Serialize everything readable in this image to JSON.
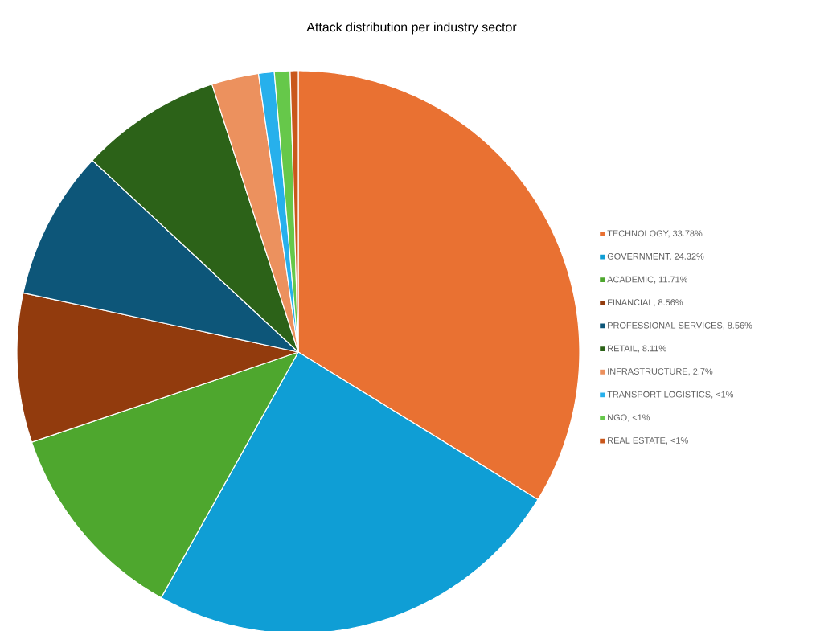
{
  "chart_data": {
    "type": "pie",
    "title": "Attack distribution per industry sector",
    "categories": [
      "TECHNOLOGY, 33.78%",
      "GOVERNMENT, 24.32%",
      "ACADEMIC, 11.71%",
      "FINANCIAL, 8.56%",
      "PROFESSIONAL SERVICES, 8.56%",
      "RETAIL, 8.11%",
      "INFRASTRUCTURE, 2.7%",
      "TRANSPORT LOGISTICS, <1%",
      "NGO, <1%",
      "REAL ESTATE, <1%"
    ],
    "values": [
      33.78,
      24.32,
      11.71,
      8.56,
      8.56,
      8.11,
      2.7,
      0.9,
      0.9,
      0.46
    ],
    "colors": [
      "#e97132",
      "#0f9ed5",
      "#4ea72e",
      "#923b0d",
      "#0d5679",
      "#2c6218",
      "#ec915e",
      "#27b0ec",
      "#66c84a",
      "#c9571b"
    ],
    "legend": "right"
  }
}
